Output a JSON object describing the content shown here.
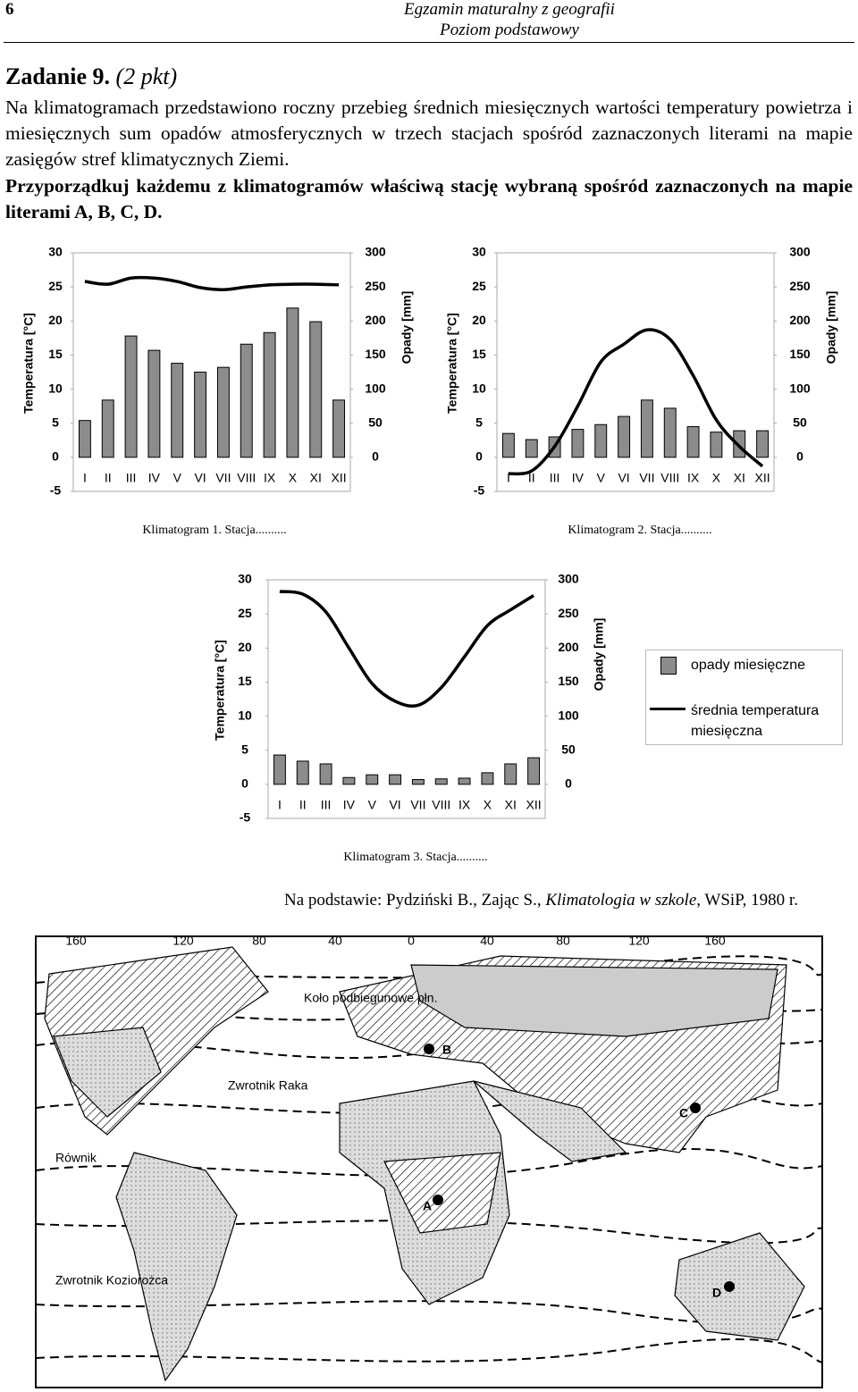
{
  "header": {
    "page": "6",
    "exam": "Egzamin maturalny z geografii",
    "level": "Poziom podstawowy"
  },
  "task": {
    "number": "Zadanie 9.",
    "points": "(2 pkt)",
    "text": "Na klimatogramach przedstawiono roczny przebieg średnich miesięcznych wartości temperatury powietrza i miesięcznych sum opadów atmosferycznych w trzech stacjach spośród zaznaczonych literami na mapie zasięgów stref klimatycznych Ziemi.",
    "instruction": "Przyporządkuj każdemu z klimatogramów właściwą stację wybraną spośród zaznaczonych na mapie literami A, B, C, D."
  },
  "chart_data": [
    {
      "type": "bar-line",
      "title": "Klimatogram 1. Stacja..........",
      "ylabel": "Temperatura [°C]",
      "y2label": "Opady [mm]",
      "categories": [
        "I",
        "II",
        "III",
        "IV",
        "V",
        "VI",
        "VII",
        "VIII",
        "IX",
        "X",
        "XI",
        "XII"
      ],
      "ylim": [
        -5,
        30
      ],
      "yticks": [
        -5,
        0,
        5,
        10,
        15,
        20,
        25,
        30
      ],
      "y2lim": [
        -50,
        300
      ],
      "y2ticks": [
        0,
        50,
        100,
        150,
        200,
        250,
        300
      ],
      "series": [
        {
          "type": "bar",
          "axis": "y2",
          "color": "#8c8c8c",
          "values": [
            54,
            84,
            178,
            157,
            138,
            125,
            132,
            166,
            183,
            219,
            199,
            84
          ]
        },
        {
          "type": "line",
          "color": "#000000",
          "values": [
            25.8,
            25.4,
            26.3,
            26.3,
            25.8,
            24.9,
            24.6,
            25.0,
            25.3,
            25.4,
            25.4,
            25.3
          ]
        }
      ]
    },
    {
      "type": "bar-line",
      "title": "Klimatogram 2. Stacja..........",
      "ylabel": "Temperatura [°C]",
      "y2label": "Opady [mm]",
      "categories": [
        "I",
        "II",
        "III",
        "IV",
        "V",
        "VI",
        "VII",
        "VIII",
        "IX",
        "X",
        "XI",
        "XII"
      ],
      "ylim": [
        -5,
        30
      ],
      "yticks": [
        -5,
        0,
        5,
        10,
        15,
        20,
        25,
        30
      ],
      "y2lim": [
        -50,
        300
      ],
      "y2ticks": [
        0,
        50,
        100,
        150,
        200,
        250,
        300
      ],
      "series": [
        {
          "type": "bar",
          "axis": "y2",
          "color": "#8c8c8c",
          "values": [
            35,
            26,
            30,
            41,
            48,
            60,
            84,
            72,
            45,
            37,
            39,
            39
          ]
        },
        {
          "type": "line",
          "color": "#000000",
          "values": [
            -2.4,
            -2.0,
            1.6,
            7.5,
            14.0,
            16.6,
            18.7,
            17.3,
            12.0,
            5.5,
            1.6,
            -1.3
          ]
        }
      ]
    },
    {
      "type": "bar-line",
      "title": "Klimatogram 3. Stacja..........",
      "ylabel": "Temperatura [°C]",
      "y2label": "Opady [mm]",
      "categories": [
        "I",
        "II",
        "III",
        "IV",
        "V",
        "VI",
        "VII",
        "VIII",
        "IX",
        "X",
        "XI",
        "XII"
      ],
      "ylim": [
        -5,
        30
      ],
      "yticks": [
        -5,
        0,
        5,
        10,
        15,
        20,
        25,
        30
      ],
      "y2lim": [
        -50,
        300
      ],
      "y2ticks": [
        0,
        50,
        100,
        150,
        200,
        250,
        300
      ],
      "series": [
        {
          "name": "opady miesięczne",
          "type": "bar",
          "axis": "y2",
          "color": "#8c8c8c",
          "values": [
            43,
            34,
            30,
            10,
            14,
            14,
            7,
            8,
            9,
            17,
            30,
            39
          ]
        },
        {
          "name": "średnia temperatura miesięczna",
          "type": "line",
          "color": "#000000",
          "values": [
            28.3,
            27.9,
            25.3,
            20.0,
            14.8,
            12.2,
            11.6,
            14.2,
            18.7,
            23.3,
            25.6,
            27.7
          ]
        }
      ]
    }
  ],
  "source": {
    "prefix": "Na podstawie: Pydziński B., Zając S., ",
    "book": "Klimatologia w szkole",
    "suffix": ", WSiP, 1980 r."
  },
  "map": {
    "longitudes": [
      "160",
      "120",
      "80",
      "40",
      "0",
      "40",
      "80",
      "120",
      "160"
    ],
    "lines": [
      "Koło podbiegunowe płn.",
      "Zwrotnik Raka",
      "Równik",
      "Zwrotnik Koziorożca"
    ],
    "stations": [
      "A",
      "B",
      "C",
      "D"
    ]
  }
}
